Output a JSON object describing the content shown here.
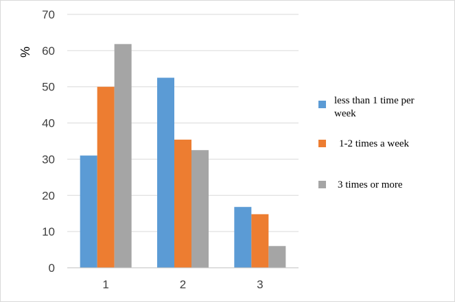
{
  "chart_data": {
    "type": "bar",
    "categories": [
      "1",
      "2",
      "3"
    ],
    "series": [
      {
        "name": "less than 1 time per week",
        "color": "#5b9bd5",
        "values": [
          31,
          52.5,
          16.8
        ]
      },
      {
        "name": "1-2 times a week",
        "color": "#ed7d31",
        "values": [
          50,
          35.4,
          14.8
        ]
      },
      {
        "name": "3 times or more",
        "color": "#a5a5a5",
        "values": [
          61.8,
          32.5,
          6
        ]
      }
    ],
    "ylabel": "%",
    "ylim": [
      0,
      70
    ],
    "yticks": [
      "0",
      "10",
      "20",
      "30",
      "40",
      "50",
      "60",
      "70"
    ],
    "grid": true,
    "legend_position": "right"
  }
}
